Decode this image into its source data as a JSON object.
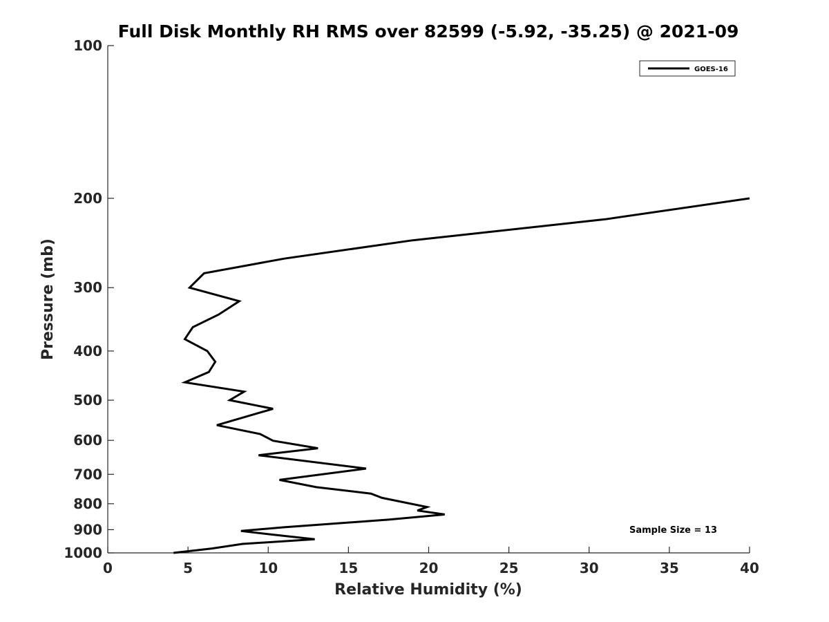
{
  "chart_data": {
    "type": "line",
    "title": "Full Disk Monthly RH RMS over 82599 (-5.92, -35.25) @ 2021-09",
    "xlabel": "Relative Humidity (%)",
    "ylabel": "Pressure (mb)",
    "xlim": [
      0,
      40
    ],
    "ylim": [
      100,
      1000
    ],
    "y_scale": "log",
    "y_reversed": true,
    "x_ticks": [
      "0",
      "5",
      "10",
      "15",
      "20",
      "25",
      "30",
      "35",
      "40"
    ],
    "y_ticks": [
      "100",
      "200",
      "300",
      "400",
      "500",
      "600",
      "700",
      "800",
      "900",
      "1000"
    ],
    "legend_position": "top-right",
    "annotation": "Sample Size = 13",
    "series": [
      {
        "name": "GOES-16",
        "color": "#000000",
        "points": [
          {
            "x": 40.0,
            "y": 200
          },
          {
            "x": 31.0,
            "y": 220
          },
          {
            "x": 19.0,
            "y": 242
          },
          {
            "x": 11.0,
            "y": 263
          },
          {
            "x": 6.0,
            "y": 281
          },
          {
            "x": 5.1,
            "y": 300
          },
          {
            "x": 8.2,
            "y": 319
          },
          {
            "x": 6.9,
            "y": 339
          },
          {
            "x": 5.3,
            "y": 359
          },
          {
            "x": 4.8,
            "y": 379
          },
          {
            "x": 6.2,
            "y": 400
          },
          {
            "x": 6.7,
            "y": 420
          },
          {
            "x": 6.3,
            "y": 440
          },
          {
            "x": 4.8,
            "y": 461
          },
          {
            "x": 8.5,
            "y": 481
          },
          {
            "x": 7.6,
            "y": 500
          },
          {
            "x": 10.3,
            "y": 520
          },
          {
            "x": 6.8,
            "y": 560
          },
          {
            "x": 9.5,
            "y": 583
          },
          {
            "x": 10.3,
            "y": 601
          },
          {
            "x": 13.1,
            "y": 622
          },
          {
            "x": 9.4,
            "y": 642
          },
          {
            "x": 16.1,
            "y": 682
          },
          {
            "x": 10.7,
            "y": 718
          },
          {
            "x": 13.0,
            "y": 742
          },
          {
            "x": 16.4,
            "y": 764
          },
          {
            "x": 17.1,
            "y": 779
          },
          {
            "x": 19.9,
            "y": 812
          },
          {
            "x": 19.3,
            "y": 825
          },
          {
            "x": 21.0,
            "y": 840
          },
          {
            "x": 17.5,
            "y": 860
          },
          {
            "x": 11.0,
            "y": 890
          },
          {
            "x": 8.3,
            "y": 905
          },
          {
            "x": 10.2,
            "y": 920
          },
          {
            "x": 12.9,
            "y": 940
          },
          {
            "x": 8.4,
            "y": 960
          },
          {
            "x": 6.5,
            "y": 980
          },
          {
            "x": 4.1,
            "y": 1000
          }
        ]
      }
    ]
  }
}
